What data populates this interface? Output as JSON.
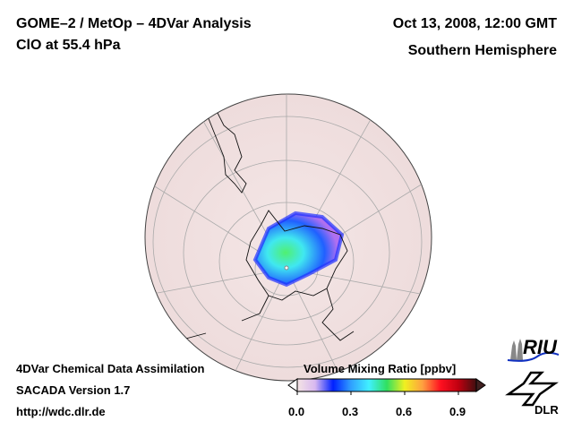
{
  "header": {
    "title": "GOME–2 / MetOp – 4DVar Analysis",
    "species": "ClO at 55.4 hPa",
    "date": "Oct 13, 2008, 12:00 GMT",
    "region": "Southern Hemisphere"
  },
  "footer": {
    "line1": "4DVar Chemical Data Assimilation",
    "line2": "SACADA Version 1.7",
    "url": "http://wdc.dlr.de"
  },
  "colorbar": {
    "title": "Volume Mixing Ratio [ppbv]",
    "range": [
      0,
      1
    ],
    "ticks": [
      "0.0",
      "0.3",
      "0.6",
      "0.9"
    ],
    "tick_values": [
      0,
      0.3,
      0.6,
      0.9
    ],
    "colors": [
      "#f4e4e4",
      "#d8b8f0",
      "#0020ff",
      "#30a0ff",
      "#40f0ff",
      "#30e060",
      "#f0f020",
      "#ffa040",
      "#ff1020",
      "#c00010",
      "#401010"
    ]
  },
  "logos": {
    "riu": "RIU",
    "dlr": "DLR"
  }
}
